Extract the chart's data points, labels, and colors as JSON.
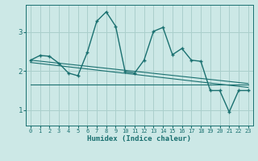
{
  "title": "",
  "xlabel": "Humidex (Indice chaleur)",
  "background_color": "#cce8e6",
  "grid_color": "#aacfcc",
  "line_color": "#1a7070",
  "xlim": [
    -0.5,
    23.5
  ],
  "ylim": [
    0.6,
    3.7
  ],
  "yticks": [
    1,
    2,
    3
  ],
  "xticks": [
    0,
    1,
    2,
    3,
    4,
    5,
    6,
    7,
    8,
    9,
    10,
    11,
    12,
    13,
    14,
    15,
    16,
    17,
    18,
    19,
    20,
    21,
    22,
    23
  ],
  "main_x": [
    0,
    1,
    2,
    3,
    4,
    5,
    6,
    7,
    8,
    9,
    10,
    11,
    12,
    13,
    14,
    15,
    16,
    17,
    18,
    19,
    20,
    21,
    22,
    23
  ],
  "main_y": [
    2.28,
    2.4,
    2.38,
    2.2,
    1.95,
    1.88,
    2.48,
    3.28,
    3.52,
    3.15,
    1.98,
    1.95,
    2.28,
    3.02,
    3.12,
    2.42,
    2.58,
    2.28,
    2.25,
    1.5,
    1.5,
    0.95,
    1.5,
    1.5
  ],
  "line1_x": [
    0,
    23
  ],
  "line1_y": [
    2.28,
    1.68
  ],
  "line2_x": [
    0,
    23
  ],
  "line2_y": [
    2.22,
    1.58
  ],
  "line3_x": [
    0,
    10
  ],
  "line3_y": [
    1.65,
    1.6
  ],
  "line4_x": [
    10,
    23
  ],
  "line4_y": [
    1.6,
    1.58
  ]
}
